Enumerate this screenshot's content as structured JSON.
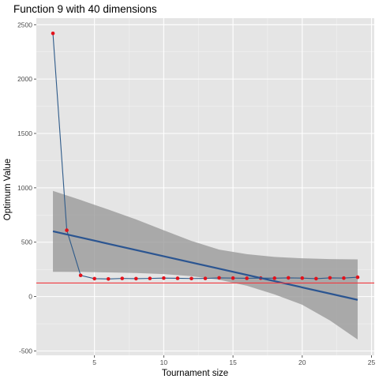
{
  "chart_data": {
    "type": "line",
    "title": "Function 9 with 40 dimensions",
    "xlabel": "Tournament size",
    "ylabel": "Optimum Value",
    "xlim": [
      0.8,
      25.2
    ],
    "ylim": [
      -540,
      2560
    ],
    "x_ticks": [
      5,
      10,
      15,
      20,
      25
    ],
    "y_ticks": [
      -500,
      0,
      500,
      1000,
      1500,
      2000,
      2500
    ],
    "grid": true,
    "background": "#e5e5e5",
    "series": [
      {
        "x": [
          2,
          3,
          4,
          5,
          6,
          7,
          8,
          9,
          10,
          11,
          12,
          13,
          14,
          15,
          16,
          17,
          18,
          19,
          20,
          21,
          22,
          23,
          24
        ],
        "y": [
          2420,
          610,
          195,
          165,
          162,
          167,
          165,
          167,
          170,
          168,
          166,
          167,
          172,
          170,
          168,
          170,
          169,
          172,
          170,
          165,
          172,
          170,
          178
        ],
        "line_color": "#2f5b8a",
        "point_color": "#e3121b"
      }
    ],
    "trend": {
      "x": [
        2,
        24
      ],
      "y": [
        600,
        -30
      ],
      "color": "#2b5591",
      "band_lower": [
        [
          2,
          228
        ],
        [
          4,
          227
        ],
        [
          6,
          222
        ],
        [
          8,
          217
        ],
        [
          10,
          207
        ],
        [
          12,
          188
        ],
        [
          14,
          155
        ],
        [
          16,
          100
        ],
        [
          18,
          20
        ],
        [
          20,
          -75
        ],
        [
          22,
          -220
        ],
        [
          24,
          -395
        ]
      ],
      "band_upper": [
        [
          2,
          972
        ],
        [
          4,
          888
        ],
        [
          6,
          800
        ],
        [
          8,
          710
        ],
        [
          10,
          610
        ],
        [
          12,
          512
        ],
        [
          14,
          432
        ],
        [
          16,
          390
        ],
        [
          18,
          365
        ],
        [
          20,
          352
        ],
        [
          22,
          345
        ],
        [
          24,
          342
        ]
      ],
      "band_color": "#999999"
    },
    "hline": {
      "y": 125,
      "color": "#f0393f"
    }
  }
}
